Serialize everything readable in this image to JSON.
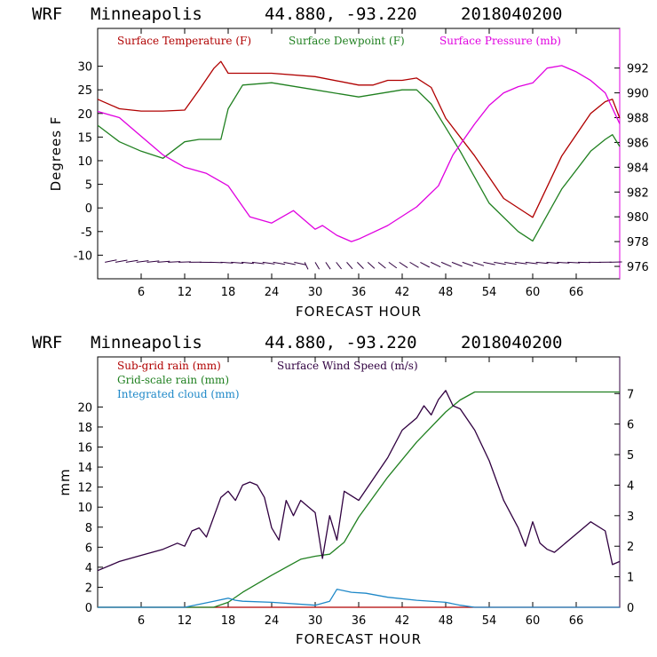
{
  "chart_data": [
    {
      "type": "line",
      "header": {
        "model": "WRF",
        "city": "Minneapolis",
        "coords": "44.880, -93.220",
        "run": "2018040200"
      },
      "xlabel": "FORECAST HOUR",
      "ylabel": "Degrees F",
      "xlim": [
        0,
        72
      ],
      "ylim": [
        -15,
        38
      ],
      "y2lim": [
        975,
        995.2
      ],
      "xticks": [
        "6",
        "12",
        "18",
        "24",
        "30",
        "36",
        "42",
        "48",
        "54",
        "60",
        "66"
      ],
      "yticks": [
        "-10",
        "-5",
        "0",
        "5",
        "10",
        "15",
        "20",
        "25",
        "30"
      ],
      "y2ticks": [
        "976",
        "978",
        "980",
        "982",
        "984",
        "986",
        "988",
        "990",
        "992"
      ],
      "series": [
        {
          "name": "Surface Temperature (F)",
          "color": "#b00000",
          "axis": "left",
          "x": [
            0,
            3,
            6,
            9,
            12,
            14,
            16,
            17,
            18,
            24,
            30,
            36,
            38,
            40,
            42,
            44,
            46,
            48,
            52,
            56,
            59,
            60,
            64,
            68,
            70,
            71,
            72
          ],
          "values": [
            23,
            21,
            20.5,
            20.5,
            20.7,
            25,
            29.5,
            31,
            28.5,
            28.5,
            27.8,
            26,
            26,
            27,
            27,
            27.5,
            25.5,
            19,
            11,
            2,
            -1,
            -2,
            11,
            20,
            22.5,
            23,
            19
          ]
        },
        {
          "name": "Surface Dewpoint (F)",
          "color": "#208020",
          "axis": "left",
          "x": [
            0,
            3,
            6,
            9,
            12,
            14,
            16,
            17,
            18,
            20,
            24,
            30,
            36,
            42,
            44,
            46,
            48,
            50,
            54,
            58,
            60,
            64,
            68,
            70,
            71,
            72
          ],
          "values": [
            17.5,
            14,
            12,
            10.5,
            14,
            14.5,
            14.5,
            14.5,
            21,
            26,
            26.5,
            25,
            23.5,
            25,
            25,
            22,
            17,
            12,
            1,
            -5,
            -7,
            4,
            12,
            14.5,
            15.5,
            13
          ]
        },
        {
          "name": "Surface Pressure (mb)",
          "color": "#e000e0",
          "axis": "right",
          "x": [
            0,
            3,
            6,
            9,
            12,
            15,
            18,
            21,
            24,
            27,
            30,
            31,
            33,
            35,
            36,
            40,
            44,
            47,
            49,
            52,
            54,
            56,
            58,
            60,
            62,
            64,
            66,
            68,
            70,
            72
          ],
          "values": [
            988.5,
            988,
            986.5,
            985,
            984,
            983.5,
            982.5,
            980,
            979.5,
            980.5,
            979,
            979.3,
            978.5,
            978,
            978.2,
            979.3,
            980.8,
            982.5,
            985,
            987.5,
            989,
            990,
            990.5,
            990.8,
            992,
            992.2,
            991.7,
            991,
            990,
            987.5
          ]
        }
      ]
    },
    {
      "type": "line",
      "header": {
        "model": "WRF",
        "city": "Minneapolis",
        "coords": "44.880, -93.220",
        "run": "2018040200"
      },
      "xlabel": "FORECAST HOUR",
      "ylabel": "mm",
      "xlim": [
        0,
        72
      ],
      "ylim": [
        0,
        25
      ],
      "y2lim": [
        0,
        8.2
      ],
      "xticks": [
        "6",
        "12",
        "18",
        "24",
        "30",
        "36",
        "42",
        "48",
        "54",
        "60",
        "66"
      ],
      "yticks": [
        "0",
        "2",
        "4",
        "6",
        "8",
        "10",
        "12",
        "14",
        "16",
        "18",
        "20"
      ],
      "y2ticks": [
        "0",
        "1",
        "2",
        "3",
        "4",
        "5",
        "6",
        "7"
      ],
      "series": [
        {
          "name": "Sub-grid rain (mm)",
          "color": "#b00000",
          "axis": "left",
          "x": [
            0,
            72
          ],
          "values": [
            0,
            0
          ]
        },
        {
          "name": "Grid-scale rain (mm)",
          "color": "#208020",
          "axis": "left",
          "x": [
            0,
            16,
            18,
            20,
            24,
            28,
            30,
            32,
            34,
            36,
            40,
            44,
            48,
            50,
            52,
            60,
            72
          ],
          "values": [
            0,
            0,
            0.5,
            1.5,
            3.2,
            4.8,
            5.1,
            5.3,
            6.5,
            9,
            13,
            16.5,
            19.5,
            20.7,
            21.5,
            21.5,
            21.5
          ]
        },
        {
          "name": "Integrated cloud (mm)",
          "color": "#1e88c8",
          "axis": "left",
          "x": [
            0,
            12,
            16,
            18,
            19,
            20,
            24,
            30,
            32,
            33,
            35,
            37,
            40,
            44,
            48,
            50,
            52,
            72
          ],
          "values": [
            0,
            0,
            0.6,
            0.9,
            0.7,
            0.6,
            0.5,
            0.2,
            0.6,
            1.8,
            1.5,
            1.4,
            1.0,
            0.7,
            0.5,
            0.2,
            0,
            0
          ]
        },
        {
          "name": "Surface Wind Speed (m/s)",
          "color": "#300040",
          "axis": "right",
          "x": [
            0,
            3,
            6,
            9,
            11,
            12,
            13,
            14,
            15,
            17,
            18,
            19,
            20,
            21,
            22,
            23,
            24,
            25,
            26,
            27,
            28,
            29,
            30,
            31,
            32,
            33,
            34,
            36,
            38,
            40,
            42,
            44,
            45,
            46,
            47,
            48,
            49,
            50,
            52,
            54,
            56,
            58,
            59,
            60,
            61,
            62,
            63,
            64,
            66,
            68,
            70,
            71,
            72
          ],
          "values": [
            1.2,
            1.5,
            1.7,
            1.9,
            2.1,
            2.0,
            2.5,
            2.6,
            2.3,
            3.6,
            3.8,
            3.5,
            4.0,
            4.1,
            4.0,
            3.6,
            2.6,
            2.2,
            3.5,
            3.0,
            3.5,
            3.3,
            3.1,
            1.6,
            3.0,
            2.2,
            3.8,
            3.5,
            4.2,
            4.9,
            5.8,
            6.2,
            6.6,
            6.3,
            6.8,
            7.1,
            6.6,
            6.5,
            5.8,
            4.8,
            3.5,
            2.6,
            2.0,
            2.8,
            2.1,
            1.9,
            1.8,
            2.0,
            2.4,
            2.8,
            2.5,
            1.4,
            1.5
          ]
        }
      ]
    }
  ]
}
